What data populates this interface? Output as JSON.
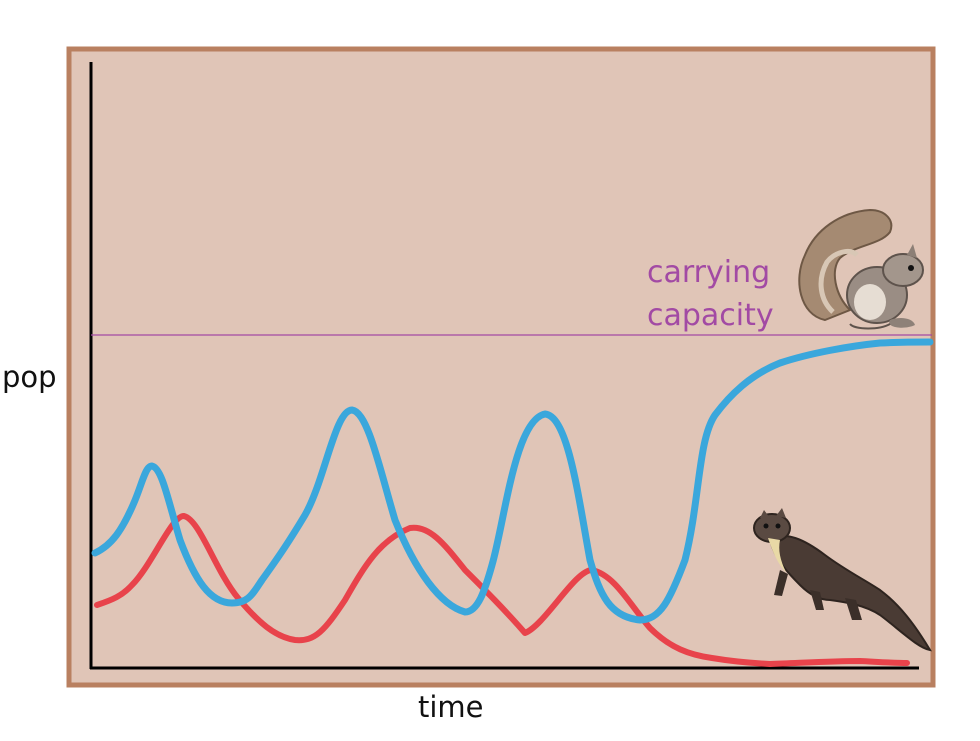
{
  "chart_data": {
    "type": "line",
    "xlabel": "time",
    "ylabel": "pop",
    "reference_line": {
      "label_line1": "carrying",
      "label_line2": "capacity",
      "color": "#a24aa4"
    },
    "colors": {
      "prey": "#3aa7dc",
      "predator": "#e8434b",
      "frame": "#b98060",
      "background": "#e0c5b7"
    },
    "series": [
      {
        "key": "prey",
        "icon": "squirrel-icon"
      },
      {
        "key": "predator",
        "icon": "marten-icon"
      }
    ]
  }
}
